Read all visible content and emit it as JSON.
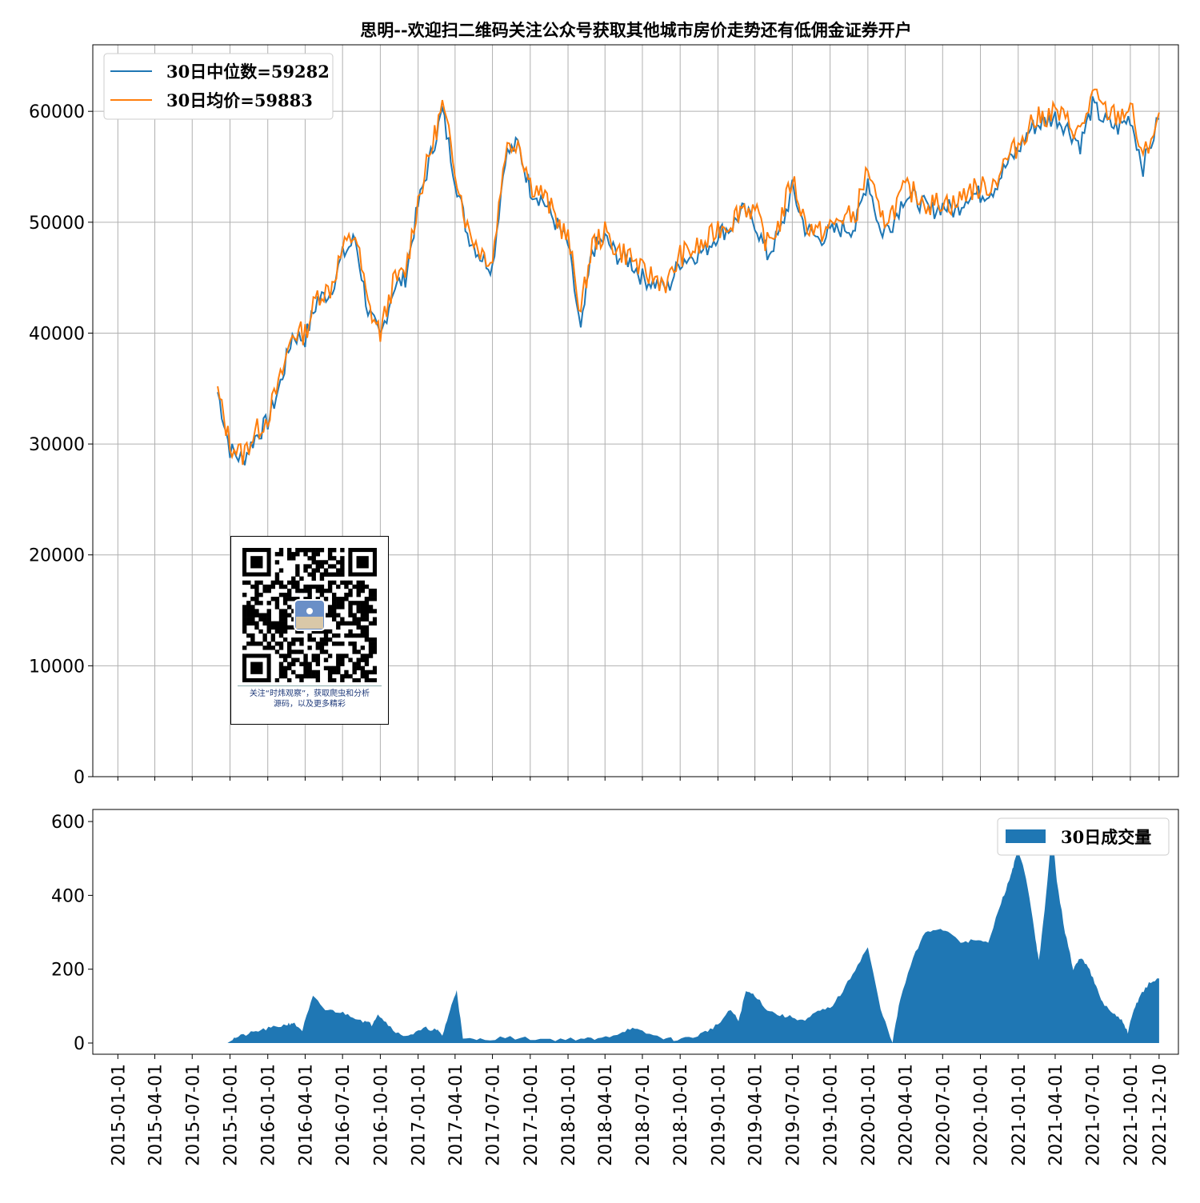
{
  "chart_data": [
    {
      "type": "line",
      "title": "思明--欢迎扫二维码关注公众号获取其他城市房价走势还有低佣金证券开户",
      "ylim": [
        0,
        66000
      ],
      "yticks": [
        "0",
        "10000",
        "20000",
        "30000",
        "40000",
        "50000",
        "60000"
      ],
      "grid": true,
      "legend_position": "top-left",
      "series": [
        {
          "name": "30日中位数=59282",
          "color": "#1f77b4"
        },
        {
          "name": "30日均价=59883",
          "color": "#ff7f0e"
        }
      ],
      "x": [
        "2015-09-01",
        "2015-10-01",
        "2015-11-01",
        "2015-12-01",
        "2016-01-01",
        "2016-02-01",
        "2016-03-01",
        "2016-04-01",
        "2016-05-01",
        "2016-06-01",
        "2016-07-01",
        "2016-08-01",
        "2016-09-01",
        "2016-10-01",
        "2016-11-01",
        "2016-12-01",
        "2017-01-01",
        "2017-02-01",
        "2017-03-01",
        "2017-04-01",
        "2017-05-01",
        "2017-06-01",
        "2017-07-01",
        "2017-08-01",
        "2017-09-01",
        "2017-10-01",
        "2017-11-01",
        "2017-12-01",
        "2018-01-01",
        "2018-02-01",
        "2018-03-01",
        "2018-04-01",
        "2018-05-01",
        "2018-06-01",
        "2018-07-01",
        "2018-08-01",
        "2018-09-01",
        "2018-10-01",
        "2018-11-01",
        "2018-12-01",
        "2019-01-01",
        "2019-02-01",
        "2019-03-01",
        "2019-04-01",
        "2019-05-01",
        "2019-06-01",
        "2019-07-01",
        "2019-08-01",
        "2019-09-01",
        "2019-10-01",
        "2019-11-01",
        "2019-12-01",
        "2020-01-01",
        "2020-02-01",
        "2020-03-01",
        "2020-04-01",
        "2020-05-01",
        "2020-06-01",
        "2020-07-01",
        "2020-08-01",
        "2020-09-01",
        "2020-10-01",
        "2020-11-01",
        "2020-12-01",
        "2021-01-01",
        "2021-02-01",
        "2021-03-01",
        "2021-04-01",
        "2021-05-01",
        "2021-06-01",
        "2021-07-01",
        "2021-08-01",
        "2021-09-01",
        "2021-10-01",
        "2021-11-01",
        "2021-12-10"
      ],
      "median": [
        34700,
        29500,
        28500,
        30600,
        32000,
        35500,
        39800,
        39500,
        43000,
        43700,
        47000,
        48500,
        42000,
        39500,
        44000,
        45000,
        51500,
        56000,
        60000,
        54000,
        49000,
        47000,
        46000,
        56000,
        57000,
        53000,
        52000,
        50000,
        48000,
        40000,
        47500,
        48500,
        47000,
        46500,
        45000,
        44500,
        44000,
        46500,
        47000,
        47500,
        49000,
        49500,
        51000,
        50000,
        47000,
        49000,
        53000,
        49500,
        48500,
        49000,
        49500,
        49500,
        54000,
        49000,
        50000,
        52500,
        52000,
        51000,
        51500,
        51000,
        52500,
        52500,
        53000,
        55000,
        56500,
        58500,
        59000,
        59500,
        58500,
        57000,
        60500,
        59000,
        58500,
        59500,
        55000,
        59300
      ],
      "mean": [
        34700,
        30000,
        29000,
        31000,
        32500,
        35800,
        40000,
        40000,
        43500,
        44000,
        47500,
        49000,
        42500,
        40000,
        44500,
        45500,
        52000,
        56500,
        60500,
        55000,
        49500,
        47500,
        46500,
        56500,
        57500,
        53500,
        52500,
        50500,
        48500,
        42000,
        48000,
        49000,
        47500,
        47000,
        45500,
        45000,
        44500,
        47000,
        47500,
        48000,
        49500,
        50000,
        51500,
        51000,
        48000,
        50000,
        54000,
        50000,
        49000,
        49500,
        50500,
        50500,
        55000,
        50000,
        51000,
        53000,
        52500,
        51500,
        52000,
        51500,
        53000,
        53000,
        53500,
        55500,
        57000,
        59000,
        59500,
        60000,
        59000,
        58000,
        61500,
        60000,
        59500,
        60500,
        55500,
        59900
      ]
    },
    {
      "type": "area",
      "ylim": [
        0,
        650
      ],
      "yticks": [
        "0",
        "200",
        "400",
        "600"
      ],
      "legend_position": "top-right",
      "grid": false,
      "series": [
        {
          "name": "30日成交量",
          "color": "#1f77b4"
        }
      ],
      "xticks": [
        "2015-01-01",
        "2015-04-01",
        "2015-07-01",
        "2015-10-01",
        "2016-01-01",
        "2016-04-01",
        "2016-07-01",
        "2016-10-01",
        "2017-01-01",
        "2017-04-01",
        "2017-07-01",
        "2017-10-01",
        "2018-01-01",
        "2018-04-01",
        "2018-07-01",
        "2018-10-01",
        "2019-01-01",
        "2019-04-01",
        "2019-07-01",
        "2019-10-01",
        "2020-01-01",
        "2020-04-01",
        "2020-07-01",
        "2020-10-01",
        "2021-01-01",
        "2021-04-01",
        "2021-07-01",
        "2021-10-01",
        "2021-12-10"
      ],
      "x": [
        "2015-09-25",
        "2015-10-15",
        "2015-11-15",
        "2015-12-15",
        "2016-01-15",
        "2016-02-15",
        "2016-03-01",
        "2016-03-25",
        "2016-04-20",
        "2016-05-20",
        "2016-06-20",
        "2016-07-20",
        "2016-08-20",
        "2016-09-10",
        "2016-09-25",
        "2016-10-20",
        "2016-11-20",
        "2016-12-20",
        "2017-01-20",
        "2017-02-15",
        "2017-03-01",
        "2017-03-20",
        "2017-04-05",
        "2017-04-20",
        "2017-06-01",
        "2017-08-01",
        "2017-10-01",
        "2017-12-01",
        "2018-02-01",
        "2018-03-15",
        "2018-05-01",
        "2018-06-01",
        "2018-07-01",
        "2018-08-15",
        "2018-09-15",
        "2018-11-01",
        "2018-12-01",
        "2019-01-01",
        "2019-02-01",
        "2019-02-20",
        "2019-03-10",
        "2019-04-01",
        "2019-05-01",
        "2019-06-01",
        "2019-07-01",
        "2019-08-01",
        "2019-09-01",
        "2019-10-01",
        "2019-11-01",
        "2019-12-01",
        "2020-01-01",
        "2020-02-01",
        "2020-03-01",
        "2020-03-20",
        "2020-04-20",
        "2020-05-20",
        "2020-06-20",
        "2020-07-20",
        "2020-08-20",
        "2020-09-20",
        "2020-10-20",
        "2020-11-20",
        "2020-12-10",
        "2020-12-20",
        "2021-01-01",
        "2021-01-20",
        "2021-02-10",
        "2021-02-20",
        "2021-03-10",
        "2021-03-25",
        "2021-04-05",
        "2021-04-25",
        "2021-05-15",
        "2021-06-01",
        "2021-06-20",
        "2021-07-10",
        "2021-07-25",
        "2021-08-20",
        "2021-09-10",
        "2021-09-25",
        "2021-10-10",
        "2021-10-25",
        "2021-11-15",
        "2021-12-10"
      ],
      "values": [
        3,
        15,
        25,
        35,
        42,
        50,
        55,
        35,
        125,
        90,
        85,
        75,
        60,
        50,
        80,
        50,
        20,
        25,
        40,
        35,
        20,
        90,
        145,
        10,
        10,
        15,
        12,
        10,
        12,
        10,
        25,
        40,
        30,
        15,
        10,
        15,
        30,
        50,
        90,
        60,
        140,
        130,
        90,
        75,
        70,
        60,
        85,
        95,
        140,
        200,
        260,
        90,
        3,
        120,
        230,
        300,
        310,
        300,
        270,
        280,
        270,
        380,
        440,
        480,
        520,
        450,
        300,
        220,
        400,
        580,
        440,
        300,
        200,
        230,
        210,
        150,
        110,
        80,
        60,
        30,
        90,
        130,
        160,
        175
      ]
    }
  ],
  "qr_card": {
    "caption_line1": "关注“时炜观察”，获取爬虫和分析",
    "caption_line2": "源码，以及更多精彩"
  }
}
